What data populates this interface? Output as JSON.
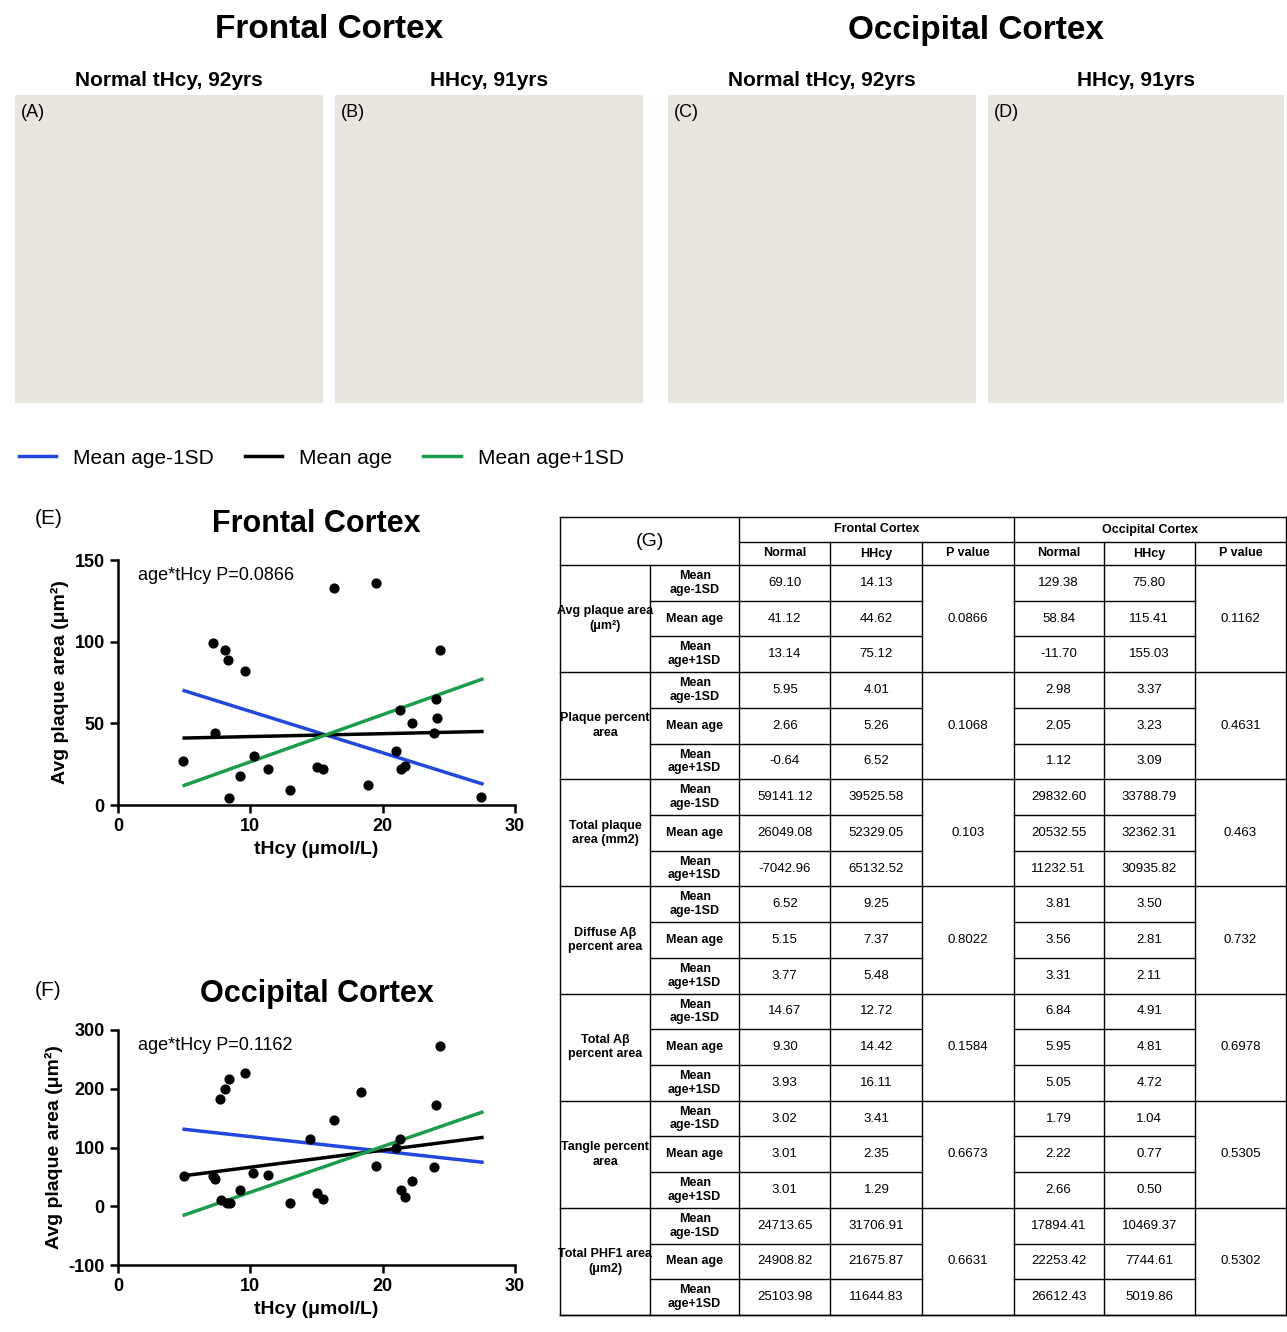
{
  "image_panels": {
    "headers": [
      "Frontal Cortex",
      "Occipital Cortex"
    ],
    "panels": [
      {
        "letter": "(A)",
        "title": "Normal tHcy, 92yrs"
      },
      {
        "letter": "(B)",
        "title": "HHcy, 91yrs"
      },
      {
        "letter": "(C)",
        "title": "Normal tHcy, 92yrs"
      },
      {
        "letter": "(D)",
        "title": "HHcy, 91yrs"
      }
    ]
  },
  "chart_data": [
    {
      "type": "scatter",
      "panel_label": "(E)",
      "title": "Frontal Cortex",
      "annotation": "age*tHcy P=0.0866",
      "x_label": "tHcy (μmol/L)",
      "y_label": "Avg plaque area (μm²)",
      "xlim": [
        0,
        30
      ],
      "xticks": [
        0,
        10,
        20,
        30
      ],
      "ylim": [
        0,
        150
      ],
      "yticks": [
        0,
        50,
        100,
        150
      ],
      "points": {
        "color": "#000000",
        "x": [
          4.9,
          7.2,
          7.3,
          8.1,
          8.3,
          8.4,
          9.2,
          9.6,
          10.3,
          11.3,
          13.0,
          15.0,
          15.5,
          16.3,
          18.9,
          19.5,
          21.0,
          21.3,
          21.4,
          21.7,
          22.2,
          23.9,
          24.0,
          24.1,
          24.3,
          27.4
        ],
        "values": [
          27,
          99,
          44,
          95,
          89,
          4,
          18,
          82,
          30,
          22,
          9,
          23,
          22,
          133,
          12,
          136,
          33,
          58,
          22,
          24,
          50,
          44,
          65,
          53,
          95,
          5
        ]
      },
      "series": [
        {
          "name": "Mean age-1SD",
          "color": "#2147e0",
          "type": "line",
          "x": [
            5,
            27.5
          ],
          "values": [
            70,
            13
          ]
        },
        {
          "name": "Mean age",
          "color": "#000000",
          "type": "line",
          "x": [
            5,
            27.5
          ],
          "values": [
            41,
            45
          ]
        },
        {
          "name": "Mean age+1SD",
          "color": "#1b9e4b",
          "type": "line",
          "x": [
            5,
            27.5
          ],
          "values": [
            12,
            77
          ]
        }
      ]
    },
    {
      "type": "scatter",
      "panel_label": "(F)",
      "title": "Occipital Cortex",
      "annotation": "age*tHcy P=0.1162",
      "x_label": "tHcy (μmol/L)",
      "y_label": "Avg plaque area (μm²)",
      "xlim": [
        0,
        30
      ],
      "xticks": [
        0,
        10,
        20,
        30
      ],
      "ylim": [
        -100,
        300
      ],
      "yticks": [
        -100,
        0,
        100,
        200,
        300
      ],
      "points": {
        "color": "#000000",
        "x": [
          5.0,
          7.2,
          7.3,
          7.7,
          7.8,
          8.1,
          8.2,
          8.4,
          8.5,
          9.2,
          9.6,
          10.2,
          11.3,
          13.0,
          14.5,
          15.0,
          15.5,
          16.3,
          18.4,
          19.5,
          21.0,
          21.3,
          21.4,
          21.7,
          22.2,
          23.9,
          24.0,
          24.3
        ],
        "values": [
          51,
          51,
          47,
          182,
          10,
          200,
          5,
          216,
          5,
          27,
          227,
          57,
          53,
          5,
          114,
          23,
          13,
          146,
          195,
          69,
          100,
          114,
          27,
          15,
          43,
          66,
          172,
          273
        ]
      },
      "series": [
        {
          "name": "Mean age-1SD",
          "color": "#2147e0",
          "type": "line",
          "x": [
            5,
            27.5
          ],
          "values": [
            131,
            75
          ]
        },
        {
          "name": "Mean age",
          "color": "#000000",
          "type": "line",
          "x": [
            5,
            27.5
          ],
          "values": [
            52,
            117
          ]
        },
        {
          "name": "Mean age+1SD",
          "color": "#1b9e4b",
          "type": "line",
          "x": [
            5,
            27.5
          ],
          "values": [
            -15,
            160
          ]
        }
      ]
    }
  ],
  "table": {
    "label": "(G)",
    "regions": [
      "Frontal Cortex",
      "Occipital Cortex"
    ],
    "columns": [
      "Normal",
      "HHcy",
      "P value"
    ],
    "row_labels": [
      "Mean age-1SD",
      "Mean age",
      "Mean age+1SD"
    ],
    "groups": [
      {
        "name": "Avg plaque area (μm²)",
        "frontal": [
          [
            "69.10",
            "14.13"
          ],
          [
            "41.12",
            "44.62"
          ],
          [
            "13.14",
            "75.12"
          ]
        ],
        "frontal_p": "0.0866",
        "occipital": [
          [
            "129.38",
            "75.80"
          ],
          [
            "58.84",
            "115.41"
          ],
          [
            "-11.70",
            "155.03"
          ]
        ],
        "occipital_p": "0.1162"
      },
      {
        "name": "Plaque percent area",
        "frontal": [
          [
            "5.95",
            "4.01"
          ],
          [
            "2.66",
            "5.26"
          ],
          [
            "-0.64",
            "6.52"
          ]
        ],
        "frontal_p": "0.1068",
        "occipital": [
          [
            "2.98",
            "3.37"
          ],
          [
            "2.05",
            "3.23"
          ],
          [
            "1.12",
            "3.09"
          ]
        ],
        "occipital_p": "0.4631"
      },
      {
        "name": "Total plaque area (mm2)",
        "frontal": [
          [
            "59141.12",
            "39525.58"
          ],
          [
            "26049.08",
            "52329.05"
          ],
          [
            "-7042.96",
            "65132.52"
          ]
        ],
        "frontal_p": "0.103",
        "occipital": [
          [
            "29832.60",
            "33788.79"
          ],
          [
            "20532.55",
            "32362.31"
          ],
          [
            "11232.51",
            "30935.82"
          ]
        ],
        "occipital_p": "0.463"
      },
      {
        "name": "Diffuse Aβ percent area",
        "frontal": [
          [
            "6.52",
            "9.25"
          ],
          [
            "5.15",
            "7.37"
          ],
          [
            "3.77",
            "5.48"
          ]
        ],
        "frontal_p": "0.8022",
        "occipital": [
          [
            "3.81",
            "3.50"
          ],
          [
            "3.56",
            "2.81"
          ],
          [
            "3.31",
            "2.11"
          ]
        ],
        "occipital_p": "0.732"
      },
      {
        "name": "Total Aβ percent area",
        "frontal": [
          [
            "14.67",
            "12.72"
          ],
          [
            "9.30",
            "14.42"
          ],
          [
            "3.93",
            "16.11"
          ]
        ],
        "frontal_p": "0.1584",
        "occipital": [
          [
            "6.84",
            "4.91"
          ],
          [
            "5.95",
            "4.81"
          ],
          [
            "5.05",
            "4.72"
          ]
        ],
        "occipital_p": "0.6978"
      },
      {
        "name": "Tangle percent area",
        "frontal": [
          [
            "3.02",
            "3.41"
          ],
          [
            "3.01",
            "2.35"
          ],
          [
            "3.01",
            "1.29"
          ]
        ],
        "frontal_p": "0.6673",
        "occipital": [
          [
            "1.79",
            "1.04"
          ],
          [
            "2.22",
            "0.77"
          ],
          [
            "2.66",
            "0.50"
          ]
        ],
        "occipital_p": "0.5305"
      },
      {
        "name": "Total PHF1 area (μm2)",
        "frontal": [
          [
            "24713.65",
            "31706.91"
          ],
          [
            "24908.82",
            "21675.87"
          ],
          [
            "25103.98",
            "11644.83"
          ]
        ],
        "frontal_p": "0.6631",
        "occipital": [
          [
            "17894.41",
            "10469.37"
          ],
          [
            "22253.42",
            "7744.61"
          ],
          [
            "26612.43",
            "5019.86"
          ]
        ],
        "occipital_p": "0.5302"
      }
    ]
  }
}
